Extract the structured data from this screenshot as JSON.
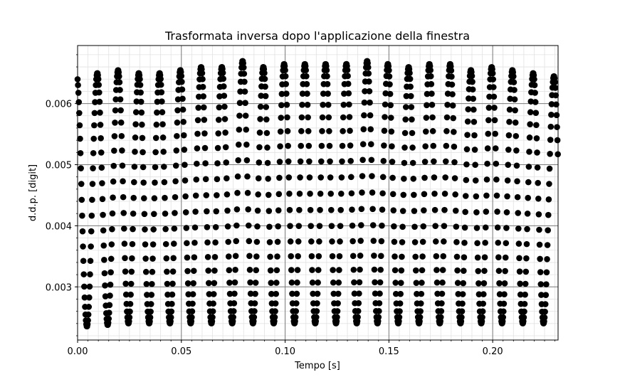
{
  "chart_data": {
    "type": "scatter",
    "title": "Trasformata inversa dopo l'applicazione della finestra",
    "xlabel": "Tempo [s]",
    "ylabel": "d.d.p. [digit]",
    "xlim": [
      0.0,
      0.2315
    ],
    "ylim": [
      0.00213,
      0.00695
    ],
    "x_ticks": [
      0.0,
      0.05,
      0.1,
      0.15,
      0.2
    ],
    "x_tick_labels": [
      "0.00",
      "0.05",
      "0.10",
      "0.15",
      "0.20"
    ],
    "y_ticks": [
      0.003,
      0.004,
      0.005,
      0.006
    ],
    "y_tick_labels": [
      "0.003",
      "0.004",
      "0.005",
      "0.006"
    ],
    "grid": true,
    "minor_grid": true,
    "legend": "none",
    "series": [
      {
        "marker": "circle",
        "color": "#000000",
        "signal": {
          "kind": "sinusoid",
          "frequency_hz": 100,
          "mean": 0.00455,
          "sample_spacing_s": 0.0002,
          "x_start": 0.0,
          "x_end": 0.2315,
          "first_peak_s": 0.0095,
          "peaks": [
            {
              "t": 0.0095,
              "max": 0.0065,
              "min": 0.00235
            },
            {
              "t": 0.0195,
              "max": 0.00655,
              "min": 0.0024
            },
            {
              "t": 0.0295,
              "max": 0.0065,
              "min": 0.0024
            },
            {
              "t": 0.0395,
              "max": 0.0065,
              "min": 0.0024
            },
            {
              "t": 0.0495,
              "max": 0.00655,
              "min": 0.0024
            },
            {
              "t": 0.0595,
              "max": 0.0066,
              "min": 0.0024
            },
            {
              "t": 0.0695,
              "max": 0.0066,
              "min": 0.0024
            },
            {
              "t": 0.0795,
              "max": 0.0067,
              "min": 0.0024
            },
            {
              "t": 0.0895,
              "max": 0.0066,
              "min": 0.0024
            },
            {
              "t": 0.0995,
              "max": 0.00665,
              "min": 0.0024
            },
            {
              "t": 0.1095,
              "max": 0.00665,
              "min": 0.0024
            },
            {
              "t": 0.1195,
              "max": 0.00665,
              "min": 0.0024
            },
            {
              "t": 0.1295,
              "max": 0.00665,
              "min": 0.0024
            },
            {
              "t": 0.1395,
              "max": 0.0067,
              "min": 0.0024
            },
            {
              "t": 0.1495,
              "max": 0.00665,
              "min": 0.0024
            },
            {
              "t": 0.1595,
              "max": 0.0066,
              "min": 0.0024
            },
            {
              "t": 0.1695,
              "max": 0.00665,
              "min": 0.0024
            },
            {
              "t": 0.1795,
              "max": 0.00665,
              "min": 0.0024
            },
            {
              "t": 0.1895,
              "max": 0.00655,
              "min": 0.0024
            },
            {
              "t": 0.1995,
              "max": 0.0066,
              "min": 0.0024
            },
            {
              "t": 0.2095,
              "max": 0.00655,
              "min": 0.0024
            },
            {
              "t": 0.2195,
              "max": 0.0065,
              "min": 0.0024
            },
            {
              "t": 0.2295,
              "max": 0.00645,
              "min": 0.0024
            }
          ]
        }
      }
    ]
  }
}
